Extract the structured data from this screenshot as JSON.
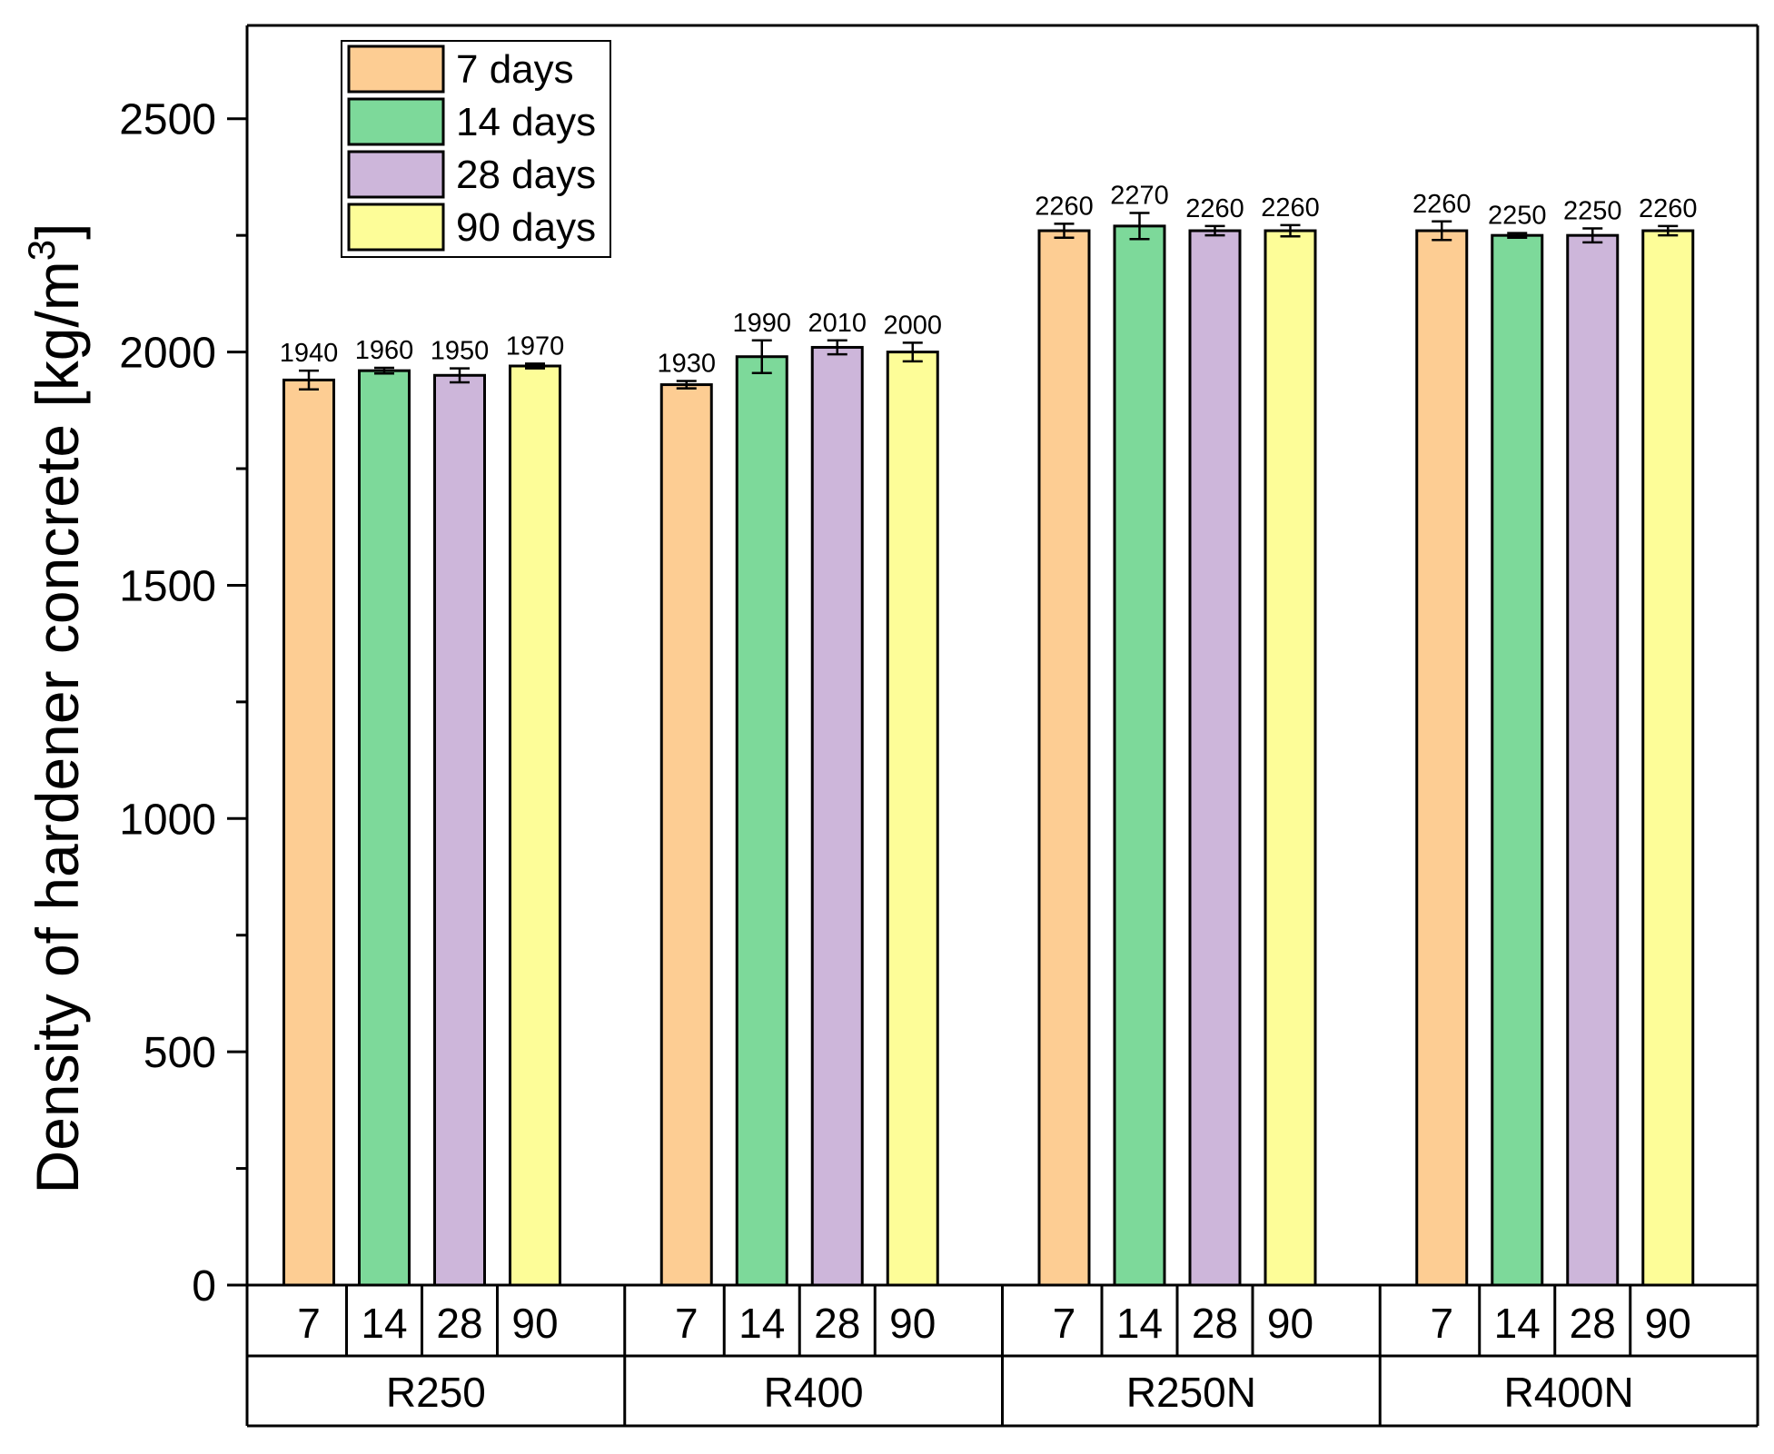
{
  "chart_data": {
    "type": "bar",
    "ylabel_main": "Density of hardener concrete [kg/m",
    "ylabel_sup": "3",
    "ylabel_close": "]",
    "ylim": [
      0,
      2700
    ],
    "yticks": [
      0,
      500,
      1000,
      1500,
      2000,
      2500
    ],
    "yticks_text": [
      "0",
      "500",
      "1000",
      "1500",
      "2000",
      "2500"
    ],
    "groups": [
      "R250",
      "R400",
      "R250N",
      "R400N"
    ],
    "sub_categories": [
      "7",
      "14",
      "28",
      "90"
    ],
    "series": [
      {
        "name": "7 days",
        "color": "#FDCD93",
        "values": [
          1940,
          1930,
          2260,
          2260
        ],
        "errors": [
          20,
          8,
          15,
          20
        ],
        "labels": [
          "1940",
          "1930",
          "2260",
          "2260"
        ]
      },
      {
        "name": "14 days",
        "color": "#7DD99A",
        "values": [
          1960,
          1990,
          2270,
          2250
        ],
        "errors": [
          6,
          35,
          28,
          5
        ],
        "labels": [
          "1960",
          "1990",
          "2270",
          "2250"
        ]
      },
      {
        "name": "28 days",
        "color": "#CDB6DA",
        "values": [
          1950,
          2010,
          2260,
          2250
        ],
        "errors": [
          15,
          15,
          10,
          15
        ],
        "labels": [
          "1950",
          "2010",
          "2260",
          "2250"
        ]
      },
      {
        "name": "90 days",
        "color": "#FDFD98",
        "values": [
          1970,
          2000,
          2260,
          2260
        ],
        "errors": [
          5,
          20,
          12,
          10
        ],
        "labels": [
          "1970",
          "2000",
          "2260",
          "2260"
        ]
      }
    ],
    "legend_position": "top-left"
  }
}
